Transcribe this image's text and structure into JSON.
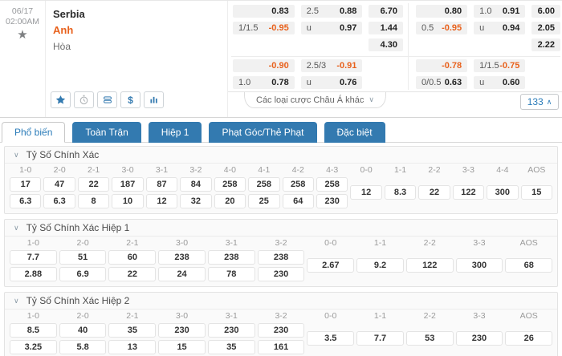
{
  "colors": {
    "accent_blue": "#337ab0",
    "link_blue": "#2b7cb9",
    "orange": "#e8611c"
  },
  "icons": {
    "chevron_down": "∨",
    "chevron_up": "∧",
    "star": "★",
    "dollar": "$"
  },
  "match": {
    "date": "06/17",
    "time": "02:00AM",
    "teams": {
      "home": "Serbia",
      "away": "Anh",
      "draw": "Hòa"
    },
    "blocks": [
      {
        "handicap": [
          {
            "label": "",
            "value": "0.83"
          },
          {
            "label": "1/1.5",
            "value": "-0.95"
          }
        ],
        "over_under": [
          {
            "label": "2.5",
            "value": "0.88"
          },
          {
            "label": "u",
            "value": "0.97"
          }
        ],
        "one_x_two": [
          "6.70",
          "1.44",
          "4.30"
        ],
        "ht_handicap": [
          {
            "label": "",
            "value": "-0.90"
          },
          {
            "label": "1.0",
            "value": "0.78"
          }
        ],
        "ht_over_under": [
          {
            "label": "2.5/3",
            "value": "-0.91"
          },
          {
            "label": "u",
            "value": "0.76"
          }
        ]
      },
      {
        "handicap": [
          {
            "label": "",
            "value": "0.80"
          },
          {
            "label": "0.5",
            "value": "-0.95"
          }
        ],
        "over_under": [
          {
            "label": "1.0",
            "value": "0.91"
          },
          {
            "label": "u",
            "value": "0.94"
          }
        ],
        "one_x_two": [
          "6.00",
          "2.05",
          "2.22"
        ],
        "ht_handicap": [
          {
            "label": "",
            "value": "-0.78"
          },
          {
            "label": "0/0.5",
            "value": "0.63"
          }
        ],
        "ht_over_under": [
          {
            "label": "1/1.5",
            "value": "-0.75"
          },
          {
            "label": "u",
            "value": "0.60"
          }
        ]
      }
    ],
    "dropdown_label": "Các loại cược Châu Á khác",
    "more_count": "133"
  },
  "tabs": [
    {
      "label": "Phổ biến",
      "active": true
    },
    {
      "label": "Toàn Trận",
      "active": false
    },
    {
      "label": "Hiệp 1",
      "active": false
    },
    {
      "label": "Phạt Góc/Thẻ Phạt",
      "active": false
    },
    {
      "label": "Đặc biệt",
      "active": false
    }
  ],
  "sections": [
    {
      "title": "Tỷ Số Chính Xác",
      "columns": [
        {
          "score": "1-0",
          "odds": [
            "17",
            "6.3"
          ]
        },
        {
          "score": "2-0",
          "odds": [
            "47",
            "6.3"
          ]
        },
        {
          "score": "2-1",
          "odds": [
            "22",
            "8"
          ]
        },
        {
          "score": "3-0",
          "odds": [
            "187",
            "10"
          ]
        },
        {
          "score": "3-1",
          "odds": [
            "87",
            "12"
          ]
        },
        {
          "score": "3-2",
          "odds": [
            "84",
            "32"
          ]
        },
        {
          "score": "4-0",
          "odds": [
            "258",
            "20"
          ]
        },
        {
          "score": "4-1",
          "odds": [
            "258",
            "25"
          ]
        },
        {
          "score": "4-2",
          "odds": [
            "258",
            "64"
          ]
        },
        {
          "score": "4-3",
          "odds": [
            "258",
            "230"
          ]
        }
      ],
      "draw_columns": [
        {
          "score": "0-0",
          "odds": [
            "12"
          ]
        },
        {
          "score": "1-1",
          "odds": [
            "8.3"
          ]
        },
        {
          "score": "2-2",
          "odds": [
            "22"
          ]
        },
        {
          "score": "3-3",
          "odds": [
            "122"
          ]
        },
        {
          "score": "4-4",
          "odds": [
            "300"
          ]
        },
        {
          "score": "AOS",
          "odds": [
            "15"
          ]
        }
      ]
    },
    {
      "title": "Tỷ Số Chính Xác Hiệp 1",
      "columns": [
        {
          "score": "1-0",
          "odds": [
            "7.7",
            "2.88"
          ]
        },
        {
          "score": "2-0",
          "odds": [
            "51",
            "6.9"
          ]
        },
        {
          "score": "2-1",
          "odds": [
            "60",
            "22"
          ]
        },
        {
          "score": "3-0",
          "odds": [
            "238",
            "24"
          ]
        },
        {
          "score": "3-1",
          "odds": [
            "238",
            "78"
          ]
        },
        {
          "score": "3-2",
          "odds": [
            "238",
            "230"
          ]
        }
      ],
      "draw_columns": [
        {
          "score": "0-0",
          "odds": [
            "2.67"
          ]
        },
        {
          "score": "1-1",
          "odds": [
            "9.2"
          ]
        },
        {
          "score": "2-2",
          "odds": [
            "122"
          ]
        },
        {
          "score": "3-3",
          "odds": [
            "300"
          ]
        },
        {
          "score": "AOS",
          "odds": [
            "68"
          ]
        }
      ]
    },
    {
      "title": "Tỷ Số Chính Xác Hiệp 2",
      "columns": [
        {
          "score": "1-0",
          "odds": [
            "8.5",
            "3.25"
          ]
        },
        {
          "score": "2-0",
          "odds": [
            "40",
            "5.8"
          ]
        },
        {
          "score": "2-1",
          "odds": [
            "35",
            "13"
          ]
        },
        {
          "score": "3-0",
          "odds": [
            "230",
            "15"
          ]
        },
        {
          "score": "3-1",
          "odds": [
            "230",
            "35"
          ]
        },
        {
          "score": "3-2",
          "odds": [
            "230",
            "161"
          ]
        }
      ],
      "draw_columns": [
        {
          "score": "0-0",
          "odds": [
            "3.5"
          ]
        },
        {
          "score": "1-1",
          "odds": [
            "7.7"
          ]
        },
        {
          "score": "2-2",
          "odds": [
            "53"
          ]
        },
        {
          "score": "3-3",
          "odds": [
            "230"
          ]
        },
        {
          "score": "AOS",
          "odds": [
            "26"
          ]
        }
      ]
    }
  ]
}
